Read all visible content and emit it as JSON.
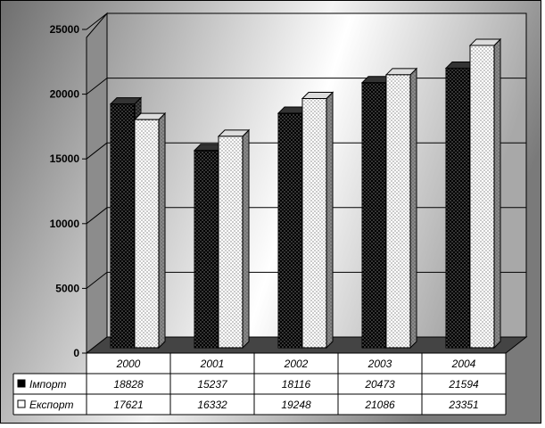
{
  "chart_data": {
    "type": "bar",
    "title": "",
    "xlabel": "",
    "ylabel": "",
    "ylim": [
      0,
      25000
    ],
    "yticks": [
      "0",
      "5000",
      "10000",
      "15000",
      "20000",
      "25000"
    ],
    "categories": [
      "2000",
      "2001",
      "2002",
      "2003",
      "2004"
    ],
    "series": [
      {
        "name": "Імпорт",
        "values": [
          18828,
          15237,
          18116,
          20473,
          21594
        ],
        "labels": [
          "18828",
          "15237",
          "18116",
          "20473",
          "21594"
        ],
        "color": "#000000",
        "pattern": "dots-white-on-black"
      },
      {
        "name": "Експорт",
        "values": [
          17621,
          16332,
          19248,
          21086,
          23351
        ],
        "labels": [
          "17621",
          "16332",
          "19248",
          "21086",
          "23351"
        ],
        "color": "#ffffff",
        "pattern": "dots-black-on-white"
      }
    ],
    "grid": true,
    "legend": "data-table-below",
    "three_d": true
  }
}
